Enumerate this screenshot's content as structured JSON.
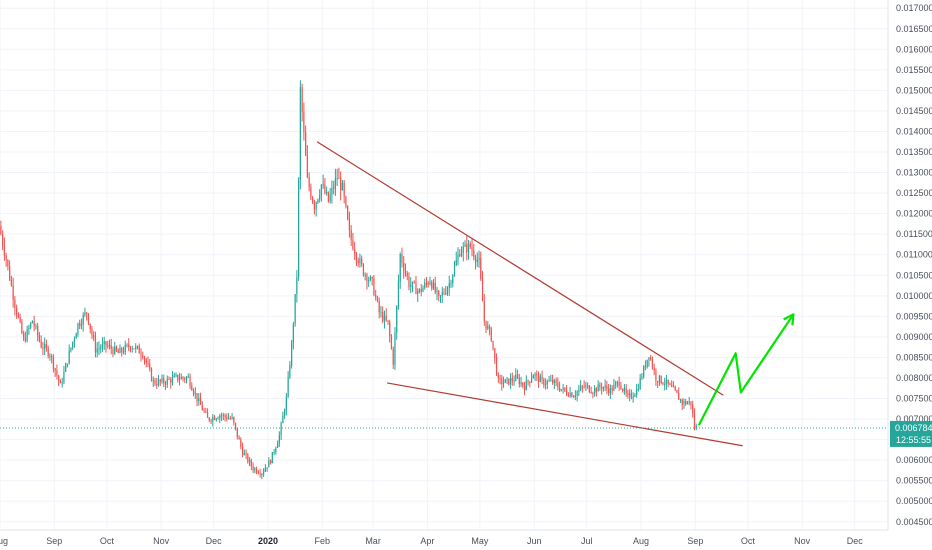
{
  "chart_data": {
    "type": "candlestick",
    "y_axis": {
      "position": "right",
      "range": [
        0.0043,
        0.0172
      ],
      "ticks": [
        "0.004500",
        "0.005000",
        "0.005500",
        "0.006000",
        "0.006500",
        "0.007000",
        "0.007500",
        "0.008000",
        "0.008500",
        "0.009000",
        "0.009500",
        "0.010000",
        "0.010500",
        "0.011000",
        "0.011500",
        "0.012000",
        "0.012500",
        "0.013000",
        "0.013500",
        "0.014000",
        "0.014500",
        "0.015000",
        "0.015500",
        "0.016000",
        "0.016500",
        "0.017000"
      ]
    },
    "x_axis": {
      "start": "2019-08-01",
      "end": "2020-12-20",
      "ticks": [
        {
          "label": "Aug",
          "date": "2019-08-01"
        },
        {
          "label": "Sep",
          "date": "2019-09-01"
        },
        {
          "label": "Oct",
          "date": "2019-10-01"
        },
        {
          "label": "Nov",
          "date": "2019-11-01"
        },
        {
          "label": "Dec",
          "date": "2019-12-01"
        },
        {
          "label": "2020",
          "date": "2020-01-01",
          "bold": true
        },
        {
          "label": "Feb",
          "date": "2020-02-01"
        },
        {
          "label": "Mar",
          "date": "2020-03-01"
        },
        {
          "label": "Apr",
          "date": "2020-04-01"
        },
        {
          "label": "May",
          "date": "2020-05-01"
        },
        {
          "label": "Jun",
          "date": "2020-06-01"
        },
        {
          "label": "Jul",
          "date": "2020-07-01"
        },
        {
          "label": "Aug",
          "date": "2020-08-01"
        },
        {
          "label": "Sep",
          "date": "2020-09-01"
        },
        {
          "label": "Oct",
          "date": "2020-10-01"
        },
        {
          "label": "Nov",
          "date": "2020-11-01"
        },
        {
          "label": "Dec",
          "date": "2020-12-01"
        }
      ]
    },
    "price_path": [
      [
        "2019-08-01",
        0.0117
      ],
      [
        "2019-08-05",
        0.0109
      ],
      [
        "2019-08-10",
        0.0098
      ],
      [
        "2019-08-15",
        0.0089
      ],
      [
        "2019-08-20",
        0.0094
      ],
      [
        "2019-08-25",
        0.0088
      ],
      [
        "2019-08-30",
        0.0086
      ],
      [
        "2019-09-05",
        0.0078
      ],
      [
        "2019-09-10",
        0.0086
      ],
      [
        "2019-09-15",
        0.0093
      ],
      [
        "2019-09-20",
        0.0096
      ],
      [
        "2019-09-25",
        0.0087
      ],
      [
        "2019-10-01",
        0.0088
      ],
      [
        "2019-10-08",
        0.0086
      ],
      [
        "2019-10-15",
        0.0088
      ],
      [
        "2019-10-22",
        0.0086
      ],
      [
        "2019-10-28",
        0.0079
      ],
      [
        "2019-11-03",
        0.0079
      ],
      [
        "2019-11-10",
        0.008
      ],
      [
        "2019-11-17",
        0.008
      ],
      [
        "2019-11-22",
        0.0075
      ],
      [
        "2019-11-28",
        0.007
      ],
      [
        "2019-12-05",
        0.0071
      ],
      [
        "2019-12-12",
        0.007
      ],
      [
        "2019-12-18",
        0.0062
      ],
      [
        "2019-12-24",
        0.0058
      ],
      [
        "2019-12-29",
        0.0057
      ],
      [
        "2020-01-03",
        0.006
      ],
      [
        "2020-01-08",
        0.0066
      ],
      [
        "2020-01-12",
        0.0075
      ],
      [
        "2020-01-15",
        0.0088
      ],
      [
        "2020-01-18",
        0.0105
      ],
      [
        "2020-01-20",
        0.015
      ],
      [
        "2020-01-24",
        0.0128
      ],
      [
        "2020-01-28",
        0.0122
      ],
      [
        "2020-02-01",
        0.0127
      ],
      [
        "2020-02-05",
        0.0123
      ],
      [
        "2020-02-10",
        0.0129
      ],
      [
        "2020-02-13",
        0.0126
      ],
      [
        "2020-02-17",
        0.0115
      ],
      [
        "2020-02-21",
        0.011
      ],
      [
        "2020-02-25",
        0.0106
      ],
      [
        "2020-03-01",
        0.0103
      ],
      [
        "2020-03-05",
        0.0096
      ],
      [
        "2020-03-10",
        0.0093
      ],
      [
        "2020-03-13",
        0.0084
      ],
      [
        "2020-03-17",
        0.011
      ],
      [
        "2020-03-22",
        0.0103
      ],
      [
        "2020-03-28",
        0.0101
      ],
      [
        "2020-04-03",
        0.0104
      ],
      [
        "2020-04-08",
        0.0099
      ],
      [
        "2020-04-14",
        0.0103
      ],
      [
        "2020-04-20",
        0.0111
      ],
      [
        "2020-04-26",
        0.0112
      ],
      [
        "2020-05-01",
        0.0108
      ],
      [
        "2020-05-04",
        0.0094
      ],
      [
        "2020-05-08",
        0.009
      ],
      [
        "2020-05-12",
        0.0079
      ],
      [
        "2020-05-17",
        0.0079
      ],
      [
        "2020-05-22",
        0.008
      ],
      [
        "2020-05-27",
        0.0078
      ],
      [
        "2020-06-01",
        0.0081
      ],
      [
        "2020-06-06",
        0.0079
      ],
      [
        "2020-06-12",
        0.0079
      ],
      [
        "2020-06-18",
        0.0077
      ],
      [
        "2020-06-24",
        0.0076
      ],
      [
        "2020-06-30",
        0.0078
      ],
      [
        "2020-07-05",
        0.0077
      ],
      [
        "2020-07-10",
        0.0078
      ],
      [
        "2020-07-15",
        0.0077
      ],
      [
        "2020-07-20",
        0.0079
      ],
      [
        "2020-07-25",
        0.0075
      ],
      [
        "2020-07-30",
        0.0077
      ],
      [
        "2020-08-03",
        0.0082
      ],
      [
        "2020-08-06",
        0.0086
      ],
      [
        "2020-08-10",
        0.008
      ],
      [
        "2020-08-15",
        0.0079
      ],
      [
        "2020-08-20",
        0.0077
      ],
      [
        "2020-08-25",
        0.0074
      ],
      [
        "2020-08-30",
        0.0074
      ],
      [
        "2020-09-01",
        0.0068
      ]
    ],
    "last_price": {
      "label": "0.006784",
      "value": 0.006784,
      "countdown": "12:55:55",
      "color": "#26a69a"
    },
    "trendlines": [
      {
        "name": "upper-resistance",
        "color": "#b33b2e",
        "from": [
          "2020-01-29",
          0.01375
        ],
        "to": [
          "2020-09-17",
          0.00758
        ]
      },
      {
        "name": "lower-support",
        "color": "#b33b2e",
        "from": [
          "2020-03-09",
          0.00788
        ],
        "to": [
          "2020-09-28",
          0.00635
        ]
      }
    ],
    "projection": {
      "color": "#00e600",
      "points": [
        [
          "2020-09-03",
          0.00685
        ],
        [
          "2020-09-24",
          0.0086
        ],
        [
          "2020-09-27",
          0.00765
        ],
        [
          "2020-10-27",
          0.00955
        ]
      ]
    },
    "colors": {
      "up": "#26a69a",
      "down": "#ef5350",
      "grid": "#f0f3fa",
      "axis_text": "#4a4f5c"
    }
  }
}
